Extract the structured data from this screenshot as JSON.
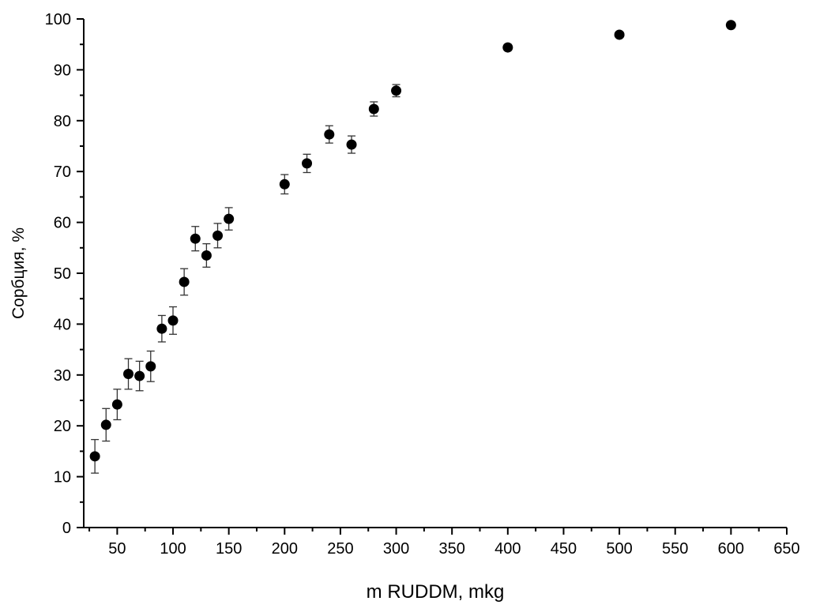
{
  "chart_data": {
    "type": "scatter",
    "xlabel": "m RUDDM, mkg",
    "ylabel": "Сорбция, %",
    "xlim": [
      20,
      650
    ],
    "ylim": [
      0,
      100
    ],
    "x_ticks": [
      50,
      100,
      150,
      200,
      250,
      300,
      350,
      400,
      450,
      500,
      550,
      600,
      650
    ],
    "y_ticks": [
      0,
      10,
      20,
      30,
      40,
      50,
      60,
      70,
      80,
      90,
      100
    ],
    "x_tick_labels": [
      "50",
      "100",
      "150",
      "200",
      "250",
      "300",
      "350",
      "400",
      "450",
      "500",
      "550",
      "600",
      "650"
    ],
    "y_tick_labels": [
      "0",
      "10",
      "20",
      "30",
      "40",
      "50",
      "60",
      "70",
      "80",
      "90",
      "100"
    ],
    "grid": false,
    "marker_color": "#000000",
    "points": [
      {
        "x": 30,
        "y": 14.0,
        "err": 3.3
      },
      {
        "x": 40,
        "y": 20.2,
        "err": 3.2
      },
      {
        "x": 50,
        "y": 24.2,
        "err": 3.0
      },
      {
        "x": 60,
        "y": 30.2,
        "err": 3.0
      },
      {
        "x": 70,
        "y": 29.8,
        "err": 2.9
      },
      {
        "x": 80,
        "y": 31.7,
        "err": 3.0
      },
      {
        "x": 90,
        "y": 39.1,
        "err": 2.6
      },
      {
        "x": 100,
        "y": 40.7,
        "err": 2.7
      },
      {
        "x": 110,
        "y": 48.3,
        "err": 2.6
      },
      {
        "x": 120,
        "y": 56.8,
        "err": 2.4
      },
      {
        "x": 130,
        "y": 53.5,
        "err": 2.3
      },
      {
        "x": 140,
        "y": 57.4,
        "err": 2.4
      },
      {
        "x": 150,
        "y": 60.7,
        "err": 2.2
      },
      {
        "x": 200,
        "y": 67.5,
        "err": 1.9
      },
      {
        "x": 220,
        "y": 71.6,
        "err": 1.8
      },
      {
        "x": 240,
        "y": 77.3,
        "err": 1.7
      },
      {
        "x": 260,
        "y": 75.3,
        "err": 1.7
      },
      {
        "x": 280,
        "y": 82.3,
        "err": 1.4
      },
      {
        "x": 300,
        "y": 85.9,
        "err": 1.2
      },
      {
        "x": 400,
        "y": 94.4,
        "err": 0.6
      },
      {
        "x": 500,
        "y": 96.9,
        "err": 0.5
      },
      {
        "x": 600,
        "y": 98.8,
        "err": 0.4
      }
    ]
  }
}
